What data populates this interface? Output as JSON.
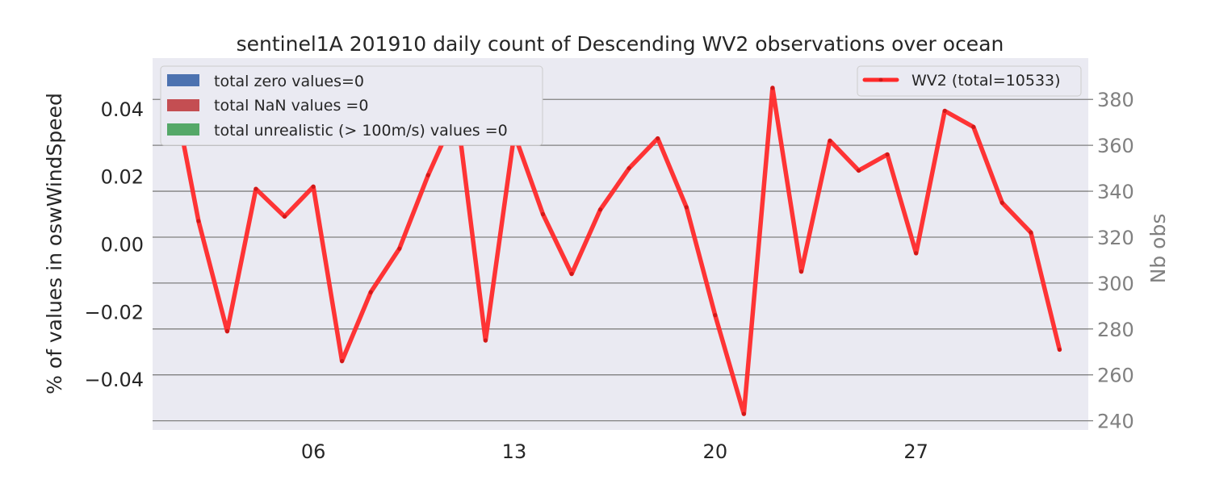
{
  "colors": {
    "plot_bg": "#EAEAF2",
    "grid": "#808080",
    "line": "#FF2A2A",
    "zero_patch": "#4C72B0",
    "nan_patch": "#C44E52",
    "unrealistic_patch": "#55A868",
    "right_axis_text": "#808080"
  },
  "chart_data": {
    "type": "line",
    "title": "sentinel1A 201910 daily count of Descending WV2 observations over ocean",
    "ylabel_left": "% of values in oswWindSpeed",
    "ylabel_right": "Nb obs",
    "y_left_ticks": [
      "0.04",
      "0.02",
      "0.00",
      "−0.02",
      "−0.04"
    ],
    "y_left_tick_values": [
      0.04,
      0.02,
      0.0,
      -0.02,
      -0.04
    ],
    "y_left_lim": [
      -0.055,
      0.055
    ],
    "y_right_lim": [
      236,
      398
    ],
    "y_right_ticks": [
      240,
      260,
      280,
      300,
      320,
      340,
      360,
      380
    ],
    "x_lim": [
      0.4,
      33.0
    ],
    "x_ticks": [
      {
        "label": "06",
        "day": 6
      },
      {
        "label": "13",
        "day": 13
      },
      {
        "label": "20",
        "day": 20
      },
      {
        "label": "27",
        "day": 27
      }
    ],
    "grid": true,
    "legend_left": {
      "placement": "upper-left",
      "entries": [
        "total zero values=0",
        "total NaN values =0",
        "total unrealistic (> 100m/s) values =0"
      ]
    },
    "legend_right": {
      "placement": "upper-right",
      "entries": [
        "WV2 (total=10533)"
      ]
    },
    "series": [
      {
        "name": "WV2 (total=10533)",
        "x": [
          1,
          2,
          3,
          4,
          5,
          6,
          7,
          8,
          9,
          10,
          11,
          12,
          13,
          14,
          15,
          16,
          17,
          18,
          19,
          20,
          21,
          22,
          23,
          24,
          25,
          26,
          27,
          28,
          29,
          30,
          31
        ],
        "values": [
          392,
          327,
          279,
          341,
          329,
          342,
          266,
          296,
          315,
          347,
          375,
          275,
          365,
          330,
          304,
          332,
          350,
          363,
          333,
          286,
          243,
          385,
          305,
          362,
          349,
          356,
          313,
          375,
          368,
          335,
          322
        ]
      }
    ],
    "last_point": {
      "x": 32,
      "value": 271
    }
  }
}
